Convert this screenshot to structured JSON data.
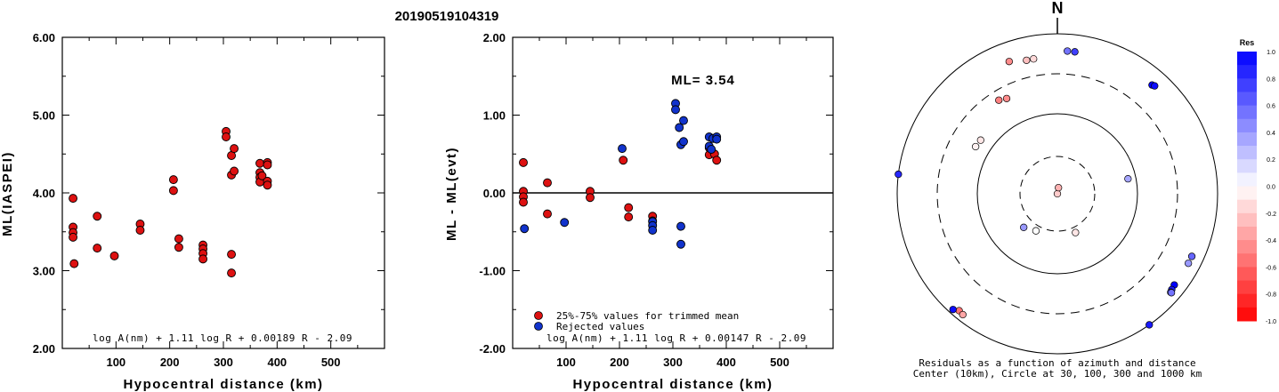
{
  "title": "20190519104319",
  "colors": {
    "red": "#dd1111",
    "blue": "#1133cc"
  },
  "chart_data": [
    {
      "type": "scatter",
      "xlabel": "Hypocentral distance (km)",
      "ylabel": "ML(IASPEI)",
      "xlim": [
        0,
        600
      ],
      "ylim": [
        2.0,
        6.0
      ],
      "xticks": [
        "100",
        "200",
        "300",
        "400",
        "500"
      ],
      "yticks": [
        "2.00",
        "3.00",
        "4.00",
        "5.00",
        "6.00"
      ],
      "formula": "log A(nm) + 1.11 log R + 0.00189 R - 2.09",
      "series": [
        {
          "color": "red",
          "points": [
            [
              20,
              3.93
            ],
            [
              20,
              3.56
            ],
            [
              20,
              3.49
            ],
            [
              20,
              3.43
            ],
            [
              22,
              3.09
            ],
            [
              65,
              3.7
            ],
            [
              65,
              3.29
            ],
            [
              97,
              3.19
            ],
            [
              145,
              3.6
            ],
            [
              145,
              3.52
            ],
            [
              207,
              4.17
            ],
            [
              207,
              4.03
            ],
            [
              217,
              3.41
            ],
            [
              217,
              3.3
            ],
            [
              262,
              3.33
            ],
            [
              262,
              3.28
            ],
            [
              262,
              3.22
            ],
            [
              262,
              3.15
            ],
            [
              305,
              4.79
            ],
            [
              305,
              4.72
            ],
            [
              315,
              4.48
            ],
            [
              315,
              4.23
            ],
            [
              315,
              3.21
            ],
            [
              315,
              2.97
            ],
            [
              320,
              4.57
            ],
            [
              320,
              4.28
            ],
            [
              368,
              4.38
            ],
            [
              368,
              4.26
            ],
            [
              368,
              4.2
            ],
            [
              368,
              4.14
            ],
            [
              372,
              4.22
            ],
            [
              382,
              4.39
            ],
            [
              382,
              4.36
            ],
            [
              382,
              4.15
            ],
            [
              382,
              4.1
            ]
          ]
        }
      ]
    },
    {
      "type": "scatter",
      "xlabel": "Hypocentral distance (km)",
      "ylabel": "ML - ML(evt)",
      "xlim": [
        0,
        600
      ],
      "ylim": [
        -2.0,
        2.0
      ],
      "xticks": [
        "100",
        "200",
        "300",
        "400",
        "500"
      ],
      "yticks": [
        "-2.00",
        "-1.00",
        "0.00",
        "1.00",
        "2.00"
      ],
      "annotation": "ML= 3.54",
      "formula": "log A(nm) + 1.11 log R + 0.00147 R - 2.09",
      "legend": [
        "25%-75% values for trimmed mean",
        "Rejected values"
      ],
      "series": [
        {
          "name": "25%-75% values for trimmed mean",
          "color": "red",
          "points": [
            [
              20,
              0.39
            ],
            [
              20,
              0.02
            ],
            [
              20,
              -0.05
            ],
            [
              20,
              -0.12
            ],
            [
              65,
              0.13
            ],
            [
              65,
              -0.27
            ],
            [
              145,
              0.02
            ],
            [
              145,
              -0.06
            ],
            [
              207,
              0.42
            ],
            [
              217,
              -0.19
            ],
            [
              217,
              -0.31
            ],
            [
              262,
              -0.3
            ],
            [
              262,
              -0.36
            ],
            [
              368,
              0.58
            ],
            [
              368,
              0.49
            ],
            [
              378,
              0.5
            ],
            [
              382,
              0.42
            ]
          ]
        },
        {
          "name": "Rejected values",
          "color": "blue",
          "points": [
            [
              22,
              -0.46
            ],
            [
              97,
              -0.38
            ],
            [
              205,
              0.57
            ],
            [
              262,
              -0.37
            ],
            [
              262,
              -0.42
            ],
            [
              262,
              -0.48
            ],
            [
              305,
              1.15
            ],
            [
              305,
              1.07
            ],
            [
              312,
              0.84
            ],
            [
              315,
              0.62
            ],
            [
              320,
              0.93
            ],
            [
              320,
              0.66
            ],
            [
              315,
              -0.43
            ],
            [
              315,
              -0.66
            ],
            [
              368,
              0.72
            ],
            [
              375,
              0.7
            ],
            [
              382,
              0.72
            ],
            [
              382,
              0.69
            ],
            [
              368,
              0.6
            ],
            [
              372,
              0.56
            ]
          ]
        }
      ]
    },
    {
      "type": "polar-scatter",
      "north_label": "N",
      "caption_line1": "Residuals as a function of azimuth and distance",
      "caption_line2": "Center (10km), Circle at 30, 100, 300 and 1000 km",
      "colorbar_title": "Res",
      "colorbar_ticks": [
        "1.0",
        "0.8",
        "0.6",
        "0.4",
        "0.2",
        "0.0",
        "-0.2",
        "-0.4",
        "-0.6",
        "-0.8",
        "-1.0"
      ],
      "points": [
        {
          "az": 4,
          "dist": 600,
          "res": 0.55
        },
        {
          "az": 7,
          "dist": 600,
          "res": 0.75
        },
        {
          "az": 340,
          "dist": 560,
          "res": -0.45
        },
        {
          "az": 347,
          "dist": 500,
          "res": -0.25
        },
        {
          "az": 350,
          "dist": 500,
          "res": -0.15
        },
        {
          "az": 41,
          "dist": 620,
          "res": 1.0
        },
        {
          "az": 42,
          "dist": 640,
          "res": 0.95
        },
        {
          "az": 328,
          "dist": 230,
          "res": -0.5
        },
        {
          "az": 332,
          "dist": 215,
          "res": -0.45
        },
        {
          "az": 305,
          "dist": 145,
          "res": -0.1
        },
        {
          "az": 300,
          "dist": 148,
          "res": -0.05
        },
        {
          "az": 277,
          "dist": 1000,
          "res": 0.85
        },
        {
          "az": 12,
          "dist": 10,
          "res": -0.2
        },
        {
          "az": 10,
          "dist": 12,
          "res": -0.3
        },
        {
          "az": 78,
          "dist": 80,
          "res": 0.35
        },
        {
          "az": 225,
          "dist": 40,
          "res": 0.4
        },
        {
          "az": 210,
          "dist": 35,
          "res": 0.0
        },
        {
          "az": 155,
          "dist": 35,
          "res": -0.1
        },
        {
          "az": 115,
          "dist": 700,
          "res": 0.6
        },
        {
          "az": 118,
          "dist": 700,
          "res": 0.4
        },
        {
          "az": 128,
          "dist": 700,
          "res": 1.0
        },
        {
          "az": 130,
          "dist": 720,
          "res": 0.9
        },
        {
          "az": 131,
          "dist": 740,
          "res": 0.65
        },
        {
          "az": 131,
          "dist": 760,
          "res": 0.55
        },
        {
          "az": 145,
          "dist": 1000,
          "res": 0.9
        },
        {
          "az": 220,
          "dist": 800,
          "res": -0.55
        },
        {
          "az": 218,
          "dist": 820,
          "res": -0.35
        },
        {
          "az": 222,
          "dist": 880,
          "res": 0.95
        }
      ]
    }
  ]
}
